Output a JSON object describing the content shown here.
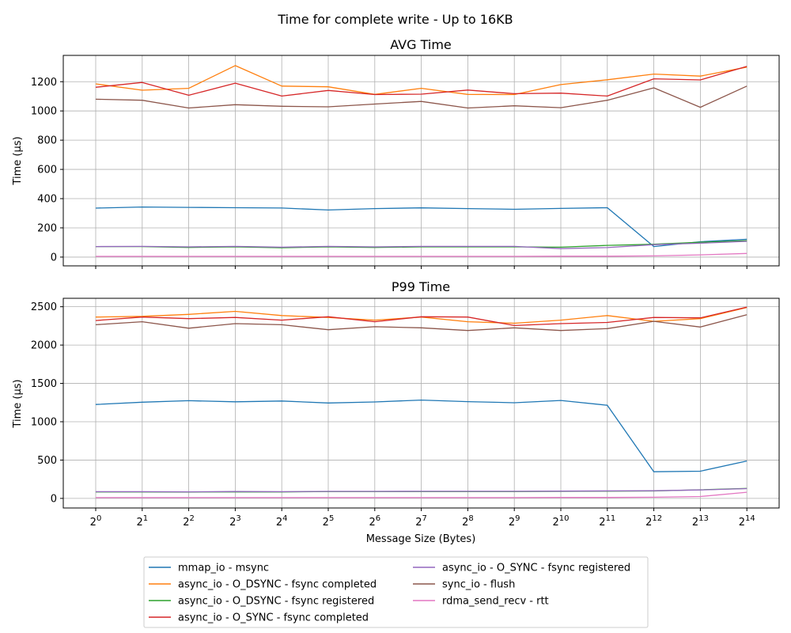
{
  "chart_data": {
    "title": "Time for complete write - Up to 16KB",
    "xlabel": "Message Size (Bytes)",
    "x_tick_base": "2",
    "x_exponents": [
      "0",
      "1",
      "2",
      "3",
      "4",
      "5",
      "6",
      "7",
      "8",
      "9",
      "10",
      "11",
      "12",
      "13",
      "14"
    ],
    "x_values": [
      1,
      2,
      4,
      8,
      16,
      32,
      64,
      128,
      256,
      512,
      1024,
      2048,
      4096,
      8192,
      16384
    ],
    "x_scale": "log2",
    "grid": true,
    "legend_placement": "bottom-center",
    "legend_columns": 2,
    "series_meta": [
      {
        "name": "mmap_io - msync",
        "color": "#1f77b4"
      },
      {
        "name": "async_io - O_DSYNC - fsync completed",
        "color": "#ff7f0e"
      },
      {
        "name": "async_io - O_DSYNC - fsync registered",
        "color": "#2ca02c"
      },
      {
        "name": "async_io - O_SYNC - fsync completed",
        "color": "#d62728"
      },
      {
        "name": "async_io - O_SYNC - fsync registered",
        "color": "#9467bd"
      },
      {
        "name": "sync_io - flush",
        "color": "#8c564b"
      },
      {
        "name": "rdma_send_recv - rtt",
        "color": "#e377c2"
      }
    ],
    "panels": [
      {
        "type": "line",
        "title": "AVG Time",
        "ylabel": "Time (µs)",
        "ylim": [
          -60,
          1380
        ],
        "yticks": [
          0,
          200,
          400,
          600,
          800,
          1000,
          1200
        ],
        "series": [
          {
            "values": [
              335,
              343,
              340,
              338,
              336,
              322,
              332,
              337,
              332,
              327,
              333,
              338,
              72,
              105,
              122
            ]
          },
          {
            "values": [
              1185,
              1142,
              1155,
              1310,
              1170,
              1165,
              1113,
              1155,
              1113,
              1112,
              1180,
              1213,
              1252,
              1238,
              1300
            ]
          },
          {
            "values": [
              72,
              72,
              66,
              70,
              64,
              70,
              66,
              70,
              70,
              70,
              68,
              80,
              88,
              102,
              112
            ]
          },
          {
            "values": [
              1162,
              1195,
              1107,
              1190,
              1102,
              1140,
              1112,
              1115,
              1143,
              1118,
              1122,
              1102,
              1220,
              1212,
              1305
            ]
          },
          {
            "values": [
              72,
              73,
              70,
              73,
              68,
              73,
              70,
              73,
              73,
              73,
              58,
              65,
              85,
              95,
              108
            ]
          },
          {
            "values": [
              1080,
              1073,
              1020,
              1043,
              1032,
              1028,
              1047,
              1065,
              1020,
              1035,
              1022,
              1073,
              1158,
              1025,
              1170
            ]
          },
          {
            "values": [
              5,
              5,
              5,
              5,
              5,
              5,
              5,
              5,
              5,
              5,
              6,
              6,
              8,
              15,
              25
            ]
          }
        ]
      },
      {
        "type": "line",
        "title": "P99 Time",
        "ylabel": "Time (µs)",
        "ylim": [
          -125,
          2610
        ],
        "yticks": [
          0,
          500,
          1000,
          1500,
          2000,
          2500
        ],
        "series": [
          {
            "values": [
              1225,
              1255,
              1275,
              1260,
              1270,
              1245,
              1258,
              1283,
              1262,
              1248,
              1278,
              1215,
              348,
              355,
              488
            ]
          },
          {
            "values": [
              2365,
              2375,
              2400,
              2440,
              2385,
              2360,
              2325,
              2365,
              2305,
              2285,
              2325,
              2385,
              2310,
              2345,
              2490
            ]
          },
          {
            "values": [
              85,
              85,
              83,
              85,
              85,
              90,
              90,
              90,
              90,
              90,
              92,
              95,
              97,
              112,
              130
            ]
          },
          {
            "values": [
              2320,
              2365,
              2345,
              2360,
              2325,
              2370,
              2305,
              2370,
              2365,
              2255,
              2280,
              2295,
              2360,
              2355,
              2495
            ]
          },
          {
            "values": [
              88,
              88,
              86,
              90,
              88,
              92,
              92,
              93,
              93,
              93,
              95,
              98,
              100,
              110,
              128
            ]
          },
          {
            "values": [
              2265,
              2305,
              2220,
              2280,
              2265,
              2200,
              2240,
              2225,
              2190,
              2225,
              2190,
              2215,
              2310,
              2235,
              2395
            ]
          },
          {
            "values": [
              10,
              10,
              10,
              10,
              10,
              10,
              10,
              10,
              10,
              10,
              12,
              12,
              15,
              25,
              80
            ]
          }
        ]
      }
    ]
  }
}
